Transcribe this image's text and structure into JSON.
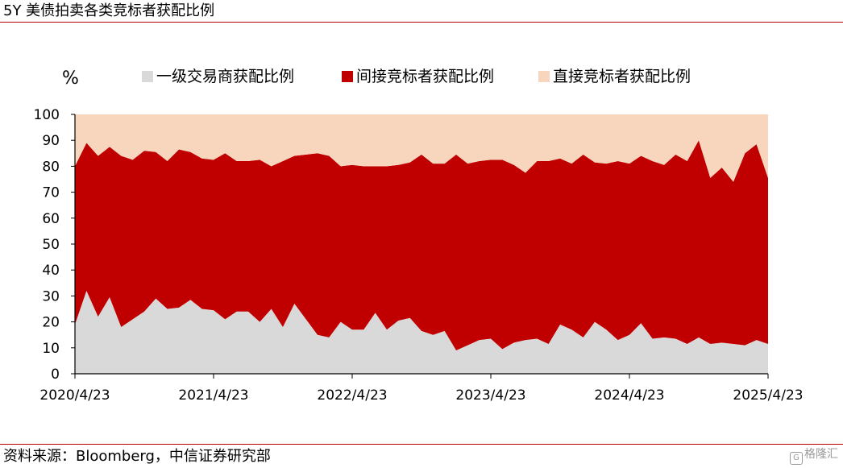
{
  "title": "5Y 美债拍卖各类竞标者获配比例",
  "source": "资料来源：Bloomberg，中信证券研究部",
  "watermark": "格隆汇",
  "chart_data": {
    "type": "area",
    "stacked": true,
    "unit": "%",
    "ylim": [
      0,
      100
    ],
    "y_ticks": [
      "0",
      "10",
      "20",
      "30",
      "40",
      "50",
      "60",
      "70",
      "80",
      "90",
      "100"
    ],
    "x_tick_labels": [
      "2020/4/23",
      "2021/4/23",
      "2022/4/23",
      "2023/4/23",
      "2024/4/23",
      "2025/4/23"
    ],
    "x_start": "2020/4/23",
    "x_end": "2025/4/23",
    "legend_position": "top",
    "grid": false,
    "series": [
      {
        "name": "一级交易商获配比例",
        "color": "#d9d9d9",
        "values": [
          19,
          32,
          22,
          29.5,
          18,
          21,
          24,
          29,
          25,
          25.5,
          28.5,
          25,
          24.5,
          21,
          24,
          24,
          20,
          25,
          18,
          27,
          21,
          15,
          14,
          20,
          17,
          17,
          23.5,
          17,
          20.5,
          21.5,
          16.5,
          15,
          16.5,
          9,
          11,
          13,
          13.5,
          9.5,
          12,
          13,
          13.5,
          11.5,
          19,
          17,
          14,
          20,
          17,
          13,
          15,
          19.5,
          13.5,
          14,
          13.5,
          11.5,
          14,
          11.5,
          12,
          11.5,
          11,
          13,
          11.5
        ]
      },
      {
        "name": "间接竞标者获配比例",
        "color": "#c00000",
        "values": [
          61,
          57,
          62,
          58,
          66,
          61.5,
          62,
          56.5,
          57,
          61,
          57,
          58,
          58,
          64,
          58,
          58,
          62.5,
          55,
          64,
          57,
          63.5,
          70,
          70,
          60,
          63.5,
          63,
          56.5,
          63,
          60,
          60,
          68,
          66,
          64.5,
          75.5,
          70,
          69,
          69,
          73,
          68.5,
          64.5,
          68.5,
          70.5,
          64,
          64,
          70.5,
          61.5,
          64,
          69,
          66,
          64.5,
          68.5,
          66.5,
          71,
          70.5,
          76,
          64,
          67.5,
          62.5,
          74,
          75.5,
          64
        ]
      },
      {
        "name": "直接竞标者获配比例",
        "color": "#f8d6bd",
        "values": [
          20,
          11,
          16,
          12.5,
          16,
          17.5,
          14,
          14.5,
          18,
          13.5,
          14.5,
          17,
          17.5,
          15,
          18,
          18,
          17.5,
          20,
          18,
          16,
          15.5,
          15,
          16,
          20,
          19.5,
          20,
          20,
          20,
          19.5,
          18.5,
          15.5,
          19,
          19,
          15.5,
          19,
          18,
          17.5,
          17.5,
          19.5,
          22.5,
          18,
          18,
          17,
          19,
          15.5,
          18.5,
          19,
          18,
          19,
          16,
          18,
          19.5,
          15.5,
          18,
          10,
          24.5,
          20.5,
          26,
          15,
          11.5,
          24.5
        ]
      }
    ]
  }
}
